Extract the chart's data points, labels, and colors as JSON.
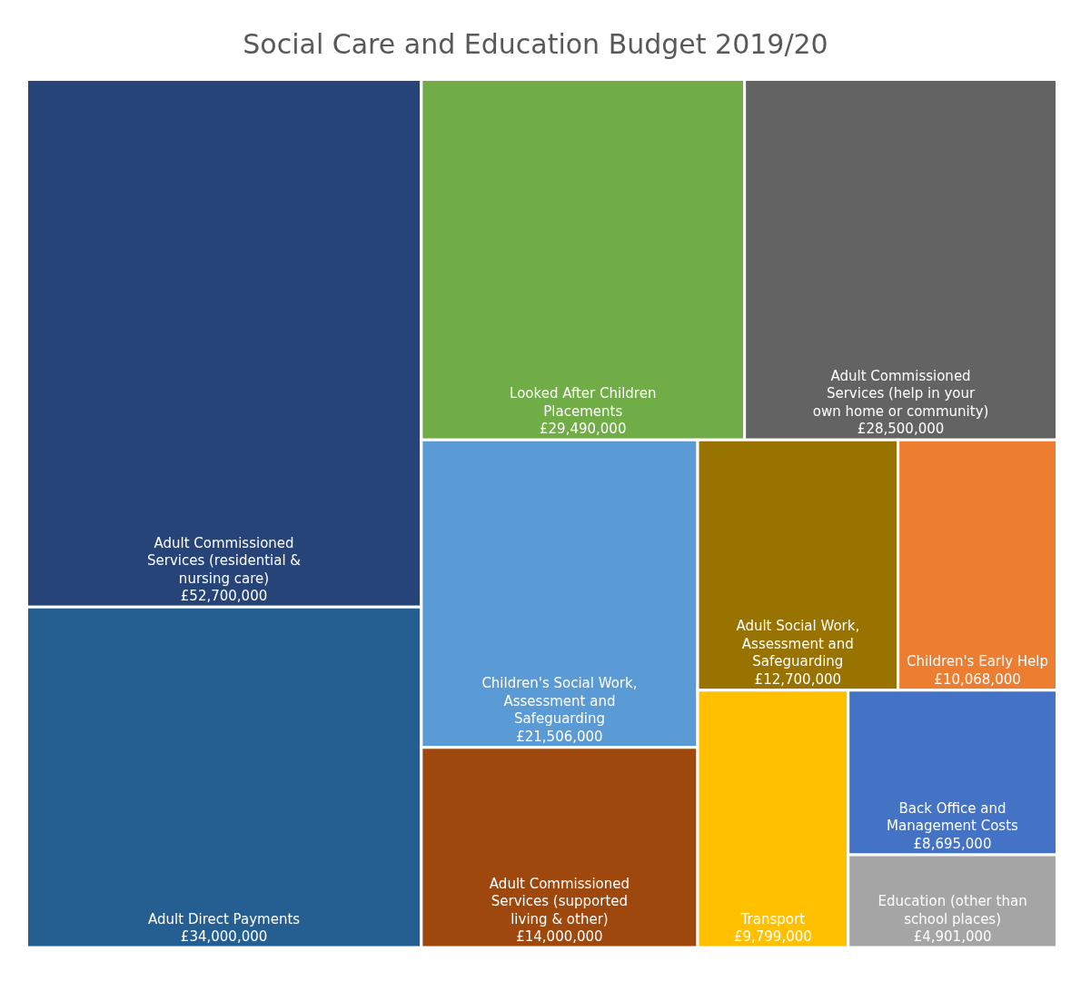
{
  "chart_data": {
    "type": "other",
    "title": "Social Care and Education Budget 2019/20",
    "categories": [
      "Adult Commissioned Services (residential & nursing care)",
      "Adult Direct Payments",
      "Looked After Children Placements",
      "Adult Commissioned Services (help in your own home or community)",
      "Children's Social Work, Assessment and Safeguarding",
      "Adult Commissioned Services (supported living & other)",
      "Adult Social Work, Assessment and Safeguarding",
      "Children's Early Help",
      "Transport",
      "Back Office and Management Costs",
      "Education (other than school places)"
    ],
    "values": [
      52700000,
      34000000,
      29490000,
      28500000,
      21506000,
      14000000,
      12700000,
      10068000,
      9799000,
      8695000,
      4901000
    ],
    "value_labels": [
      "£52,700,000",
      "£34,000,000",
      "£29,490,000",
      "£28,500,000",
      "£21,506,000",
      "£14,000,000",
      "£12,700,000",
      "£10,068,000",
      "£9,799,000",
      "£8,695,000",
      "£4,901,000"
    ],
    "colors": [
      "#264478",
      "#255e91",
      "#70ad47",
      "#636363",
      "#5b9bd5",
      "#9e480e",
      "#997300",
      "#ed7d31",
      "#ffc000",
      "#4472c4",
      "#a5a5a5"
    ]
  }
}
